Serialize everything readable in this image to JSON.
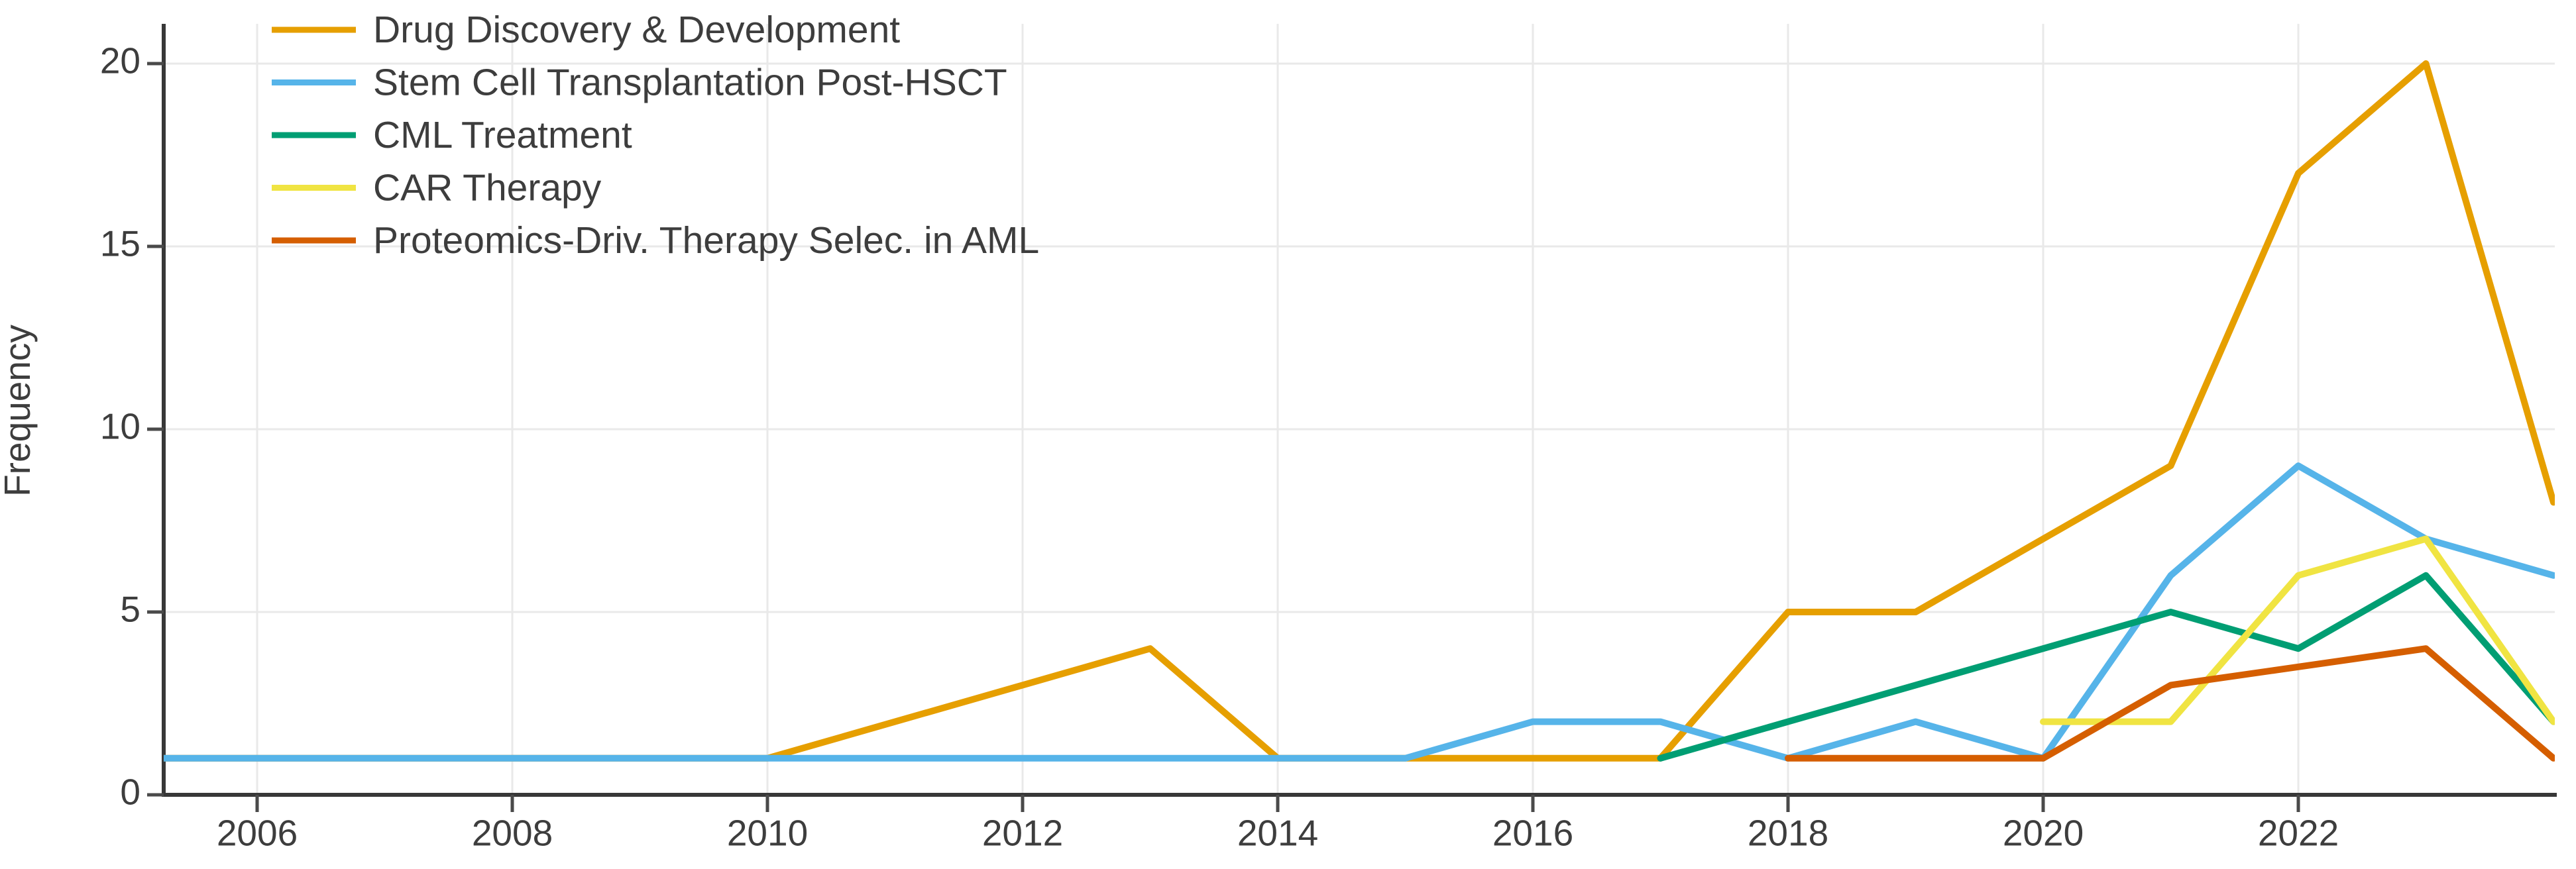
{
  "chart_data": {
    "type": "line",
    "title": "",
    "xlabel": "",
    "ylabel": "Frequency",
    "x_ticks": [
      2006,
      2008,
      2010,
      2012,
      2014,
      2016,
      2018,
      2020,
      2022
    ],
    "y_ticks": [
      0,
      5,
      10,
      15,
      20
    ],
    "x_domain": [
      2005.25,
      2024
    ],
    "y_domain": [
      0,
      20
    ],
    "grid": true,
    "legend_position": "top-left",
    "series": [
      {
        "name": "Drug Discovery & Development",
        "color": "#E69F00",
        "points": [
          [
            2005,
            1
          ],
          [
            2006,
            1
          ],
          [
            2007,
            1
          ],
          [
            2008,
            1
          ],
          [
            2009,
            1
          ],
          [
            2010,
            1
          ],
          [
            2011,
            2
          ],
          [
            2012,
            3
          ],
          [
            2013,
            4
          ],
          [
            2014,
            1
          ],
          [
            2015,
            1
          ],
          [
            2016,
            1
          ],
          [
            2017,
            1
          ],
          [
            2018,
            5
          ],
          [
            2019,
            5
          ],
          [
            2020,
            7
          ],
          [
            2021,
            9
          ],
          [
            2022,
            17
          ],
          [
            2023,
            20
          ],
          [
            2024,
            8
          ]
        ]
      },
      {
        "name": "Stem Cell Transplantation Post-HSCT",
        "color": "#56B4E9",
        "points": [
          [
            2005,
            1
          ],
          [
            2006,
            1
          ],
          [
            2007,
            1
          ],
          [
            2008,
            1
          ],
          [
            2009,
            1
          ],
          [
            2010,
            1
          ],
          [
            2011,
            1
          ],
          [
            2012,
            1
          ],
          [
            2013,
            1
          ],
          [
            2014,
            1
          ],
          [
            2015,
            1
          ],
          [
            2016,
            2
          ],
          [
            2017,
            2
          ],
          [
            2018,
            1
          ],
          [
            2019,
            2
          ],
          [
            2020,
            1
          ],
          [
            2021,
            6
          ],
          [
            2022,
            9
          ],
          [
            2023,
            7
          ],
          [
            2024,
            6
          ]
        ]
      },
      {
        "name": "CML Treatment",
        "color": "#009E73",
        "points": [
          [
            2017,
            1
          ],
          [
            2018,
            2
          ],
          [
            2019,
            3
          ],
          [
            2020,
            4
          ],
          [
            2021,
            5
          ],
          [
            2022,
            4
          ],
          [
            2023,
            6
          ],
          [
            2024,
            2
          ]
        ]
      },
      {
        "name": "CAR Therapy",
        "color": "#F0E442",
        "points": [
          [
            2020,
            2
          ],
          [
            2021,
            2
          ],
          [
            2022,
            6
          ],
          [
            2023,
            7
          ],
          [
            2024,
            2
          ]
        ]
      },
      {
        "name": "Proteomics-Driv. Therapy Selec. in AML",
        "color": "#D55E00",
        "points": [
          [
            2018,
            1
          ],
          [
            2019,
            1
          ],
          [
            2020,
            1
          ],
          [
            2021,
            3
          ],
          [
            2023,
            4
          ],
          [
            2024,
            1
          ]
        ]
      }
    ]
  }
}
